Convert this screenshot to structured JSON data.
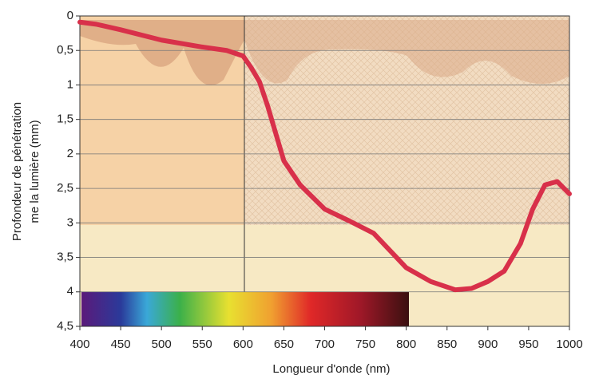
{
  "chart_data": {
    "type": "line",
    "ylabel": [
      "Profondeur de pénétration",
      "me la lumière (mm)"
    ],
    "xlabel": "Longueur d'onde (nm)",
    "x": [
      400,
      420,
      450,
      500,
      550,
      580,
      600,
      610,
      620,
      630,
      640,
      650,
      670,
      700,
      730,
      760,
      780,
      800,
      830,
      860,
      880,
      900,
      920,
      940,
      955,
      970,
      985,
      1000
    ],
    "series": [
      {
        "color": "#d8304a",
        "values": [
          0.09,
          0.12,
          0.2,
          0.35,
          0.45,
          0.5,
          0.58,
          0.75,
          0.95,
          1.3,
          1.7,
          2.1,
          2.45,
          2.8,
          2.97,
          3.15,
          3.4,
          3.65,
          3.85,
          3.97,
          3.95,
          3.85,
          3.7,
          3.3,
          2.8,
          2.45,
          2.4,
          2.58
        ]
      }
    ],
    "xlim": [
      400,
      1000
    ],
    "xticks": [
      400,
      450,
      500,
      550,
      600,
      650,
      700,
      750,
      800,
      850,
      900,
      950,
      1000
    ],
    "ylim": [
      0,
      4.5
    ],
    "y_inverted": true,
    "yticks": [
      0,
      {
        "value": 0.5,
        "label": "0,5"
      },
      1,
      {
        "value": 1.5,
        "label": "1,5"
      },
      2,
      {
        "value": 2.5,
        "label": "2,5"
      },
      3,
      {
        "value": 3.5,
        "label": "3,5"
      },
      4,
      {
        "value": 4.5,
        "label": "4,5"
      }
    ],
    "grid": true
  }
}
